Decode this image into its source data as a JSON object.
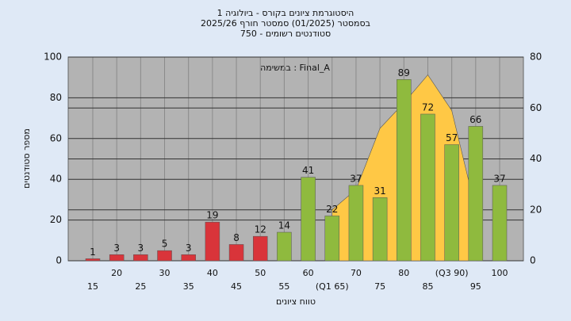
{
  "chart_data": {
    "type": "bar",
    "title": [
      "היסטוגרמת ציונים בקורס - ביולוגיה 1",
      "בסמסטר  (01/2025)  סמסטר חורף 2025/26",
      "סטודנטים רשומים - 750"
    ],
    "annotation": "במשימה : Final_A",
    "x_label": "טווח ציונים",
    "y_label": "מספר סטודנטים",
    "categories": [
      "15",
      "20",
      "25",
      "30",
      "35",
      "40",
      "45",
      "50",
      "55",
      "60",
      "(Q1 65)",
      "70",
      "75",
      "80",
      "85",
      "(Q3 90)",
      "95",
      "100"
    ],
    "values": [
      1,
      3,
      3,
      5,
      3,
      19,
      8,
      12,
      14,
      41,
      22,
      37,
      31,
      89,
      72,
      57,
      66,
      37
    ],
    "colors": [
      "#d9343a",
      "#d9343a",
      "#d9343a",
      "#d9343a",
      "#d9343a",
      "#d9343a",
      "#d9343a",
      "#d9343a",
      "#8fba3e",
      "#8fba3e",
      "#8fba3e",
      "#8fba3e",
      "#8fba3e",
      "#8fba3e",
      "#8fba3e",
      "#8fba3e",
      "#8fba3e",
      "#8fba3e"
    ],
    "area": {
      "color": "#ffc845",
      "axis": "y2",
      "values": [
        null,
        null,
        null,
        null,
        null,
        null,
        null,
        null,
        null,
        null,
        20,
        28,
        52,
        62,
        73,
        59,
        20,
        null
      ]
    },
    "ylim": [
      0,
      100
    ],
    "yticks": [
      0,
      20,
      40,
      60,
      80,
      100
    ],
    "y2lim": [
      0,
      80
    ],
    "y2ticks": [
      0,
      20,
      40,
      60,
      80
    ],
    "grid": true
  }
}
